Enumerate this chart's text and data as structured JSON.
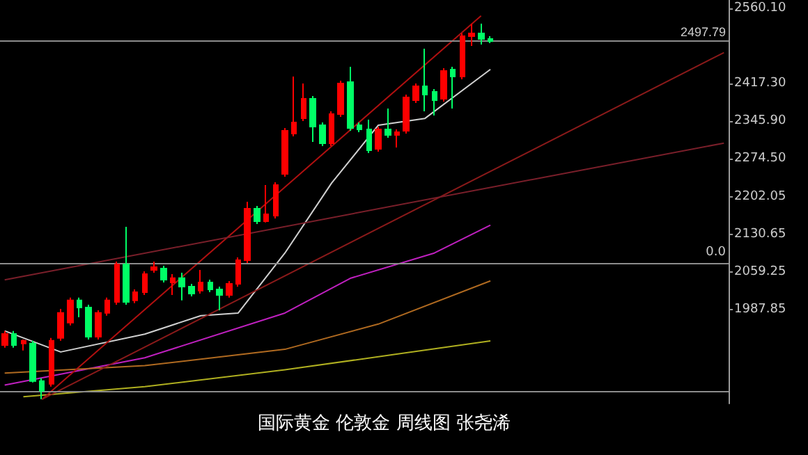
{
  "chart_data": {
    "type": "candlestick",
    "annotations": [
      "国际黄金 伦敦金 周线图 张尧浠",
      {
        "text": "0.0",
        "y": 2076
      }
    ],
    "categories": [
      null,
      null,
      null,
      null,
      null,
      null,
      null,
      null,
      null,
      null,
      null,
      null,
      null,
      null,
      null,
      null,
      null,
      null,
      null,
      null,
      null,
      null,
      null,
      null,
      null,
      null,
      null,
      null,
      null,
      null,
      null,
      null,
      null,
      null,
      null,
      null,
      null,
      null,
      null,
      null,
      null,
      null,
      null,
      null,
      null,
      null,
      null,
      null,
      null,
      null,
      null,
      null,
      null,
      null,
      null,
      null,
      null,
      null,
      null,
      null,
      null,
      null,
      null,
      null,
      null,
      null,
      null,
      null,
      null,
      null,
      null,
      null,
      null,
      null,
      null,
      null,
      null,
      null
    ],
    "ohlc": [
      [
        1920.2,
        1946.7,
        1915.0,
        1941.4
      ],
      [
        1941.4,
        1946.7,
        1915.0,
        1920.2
      ],
      [
        1922.9,
        1930.8,
        1909.7,
        1928.2
      ],
      [
        1922.9,
        1928.2,
        1848.9,
        1851.5
      ],
      [
        1851.5,
        1856.8,
        1817.2,
        1833.0
      ],
      [
        1846.2,
        1933.5,
        1841.0,
        1928.2
      ],
      [
        1933.5,
        1989.0,
        1928.2,
        1981.1
      ],
      [
        1962.6,
        2010.2,
        1957.3,
        2004.9
      ],
      [
        2004.9,
        2010.2,
        1973.1,
        1991.6
      ],
      [
        1991.6,
        1996.9,
        1930.8,
        1936.1
      ],
      [
        1936.1,
        1986.3,
        1930.8,
        1981.1
      ],
      [
        1981.1,
        2010.2,
        1975.8,
        2004.9
      ],
      [
        2002.2,
        2078.9,
        1996.9,
        2073.6
      ],
      [
        2073.6,
        2145.0,
        1996.9,
        2002.2
      ],
      [
        2004.9,
        2026.0,
        1999.6,
        2020.7
      ],
      [
        2020.7,
        2060.4,
        2015.4,
        2055.1
      ],
      [
        2063.0,
        2078.9,
        2057.7,
        2068.3
      ],
      [
        2065.7,
        2071.0,
        2039.2,
        2044.5
      ],
      [
        2039.2,
        2055.1,
        2015.4,
        2047.2
      ],
      [
        2047.2,
        2057.7,
        2004.9,
        2031.3
      ],
      [
        2031.3,
        2036.6,
        2012.8,
        2018.1
      ],
      [
        2023.4,
        2063.0,
        2018.1,
        2039.2
      ],
      [
        2039.2,
        2044.5,
        2020.7,
        2026.0
      ],
      [
        2026.0,
        2031.3,
        1986.3,
        2015.4
      ],
      [
        2015.4,
        2041.9,
        2010.2,
        2036.6
      ],
      [
        2036.6,
        2086.8,
        2031.3,
        2081.5
      ],
      [
        2081.5,
        2192.6,
        2076.2,
        2179.4
      ],
      [
        2179.4,
        2184.7,
        2150.3,
        2155.6
      ],
      [
        2155.6,
        2224.3,
        2153.0,
        2168.8
      ],
      [
        2166.2,
        2229.6,
        2160.9,
        2224.3
      ],
      [
        2245.5,
        2332.7,
        2240.2,
        2327.4
      ],
      [
        2322.1,
        2430.5,
        2316.8,
        2343.3
      ],
      [
        2351.2,
        2417.3,
        2345.9,
        2388.2
      ],
      [
        2388.2,
        2393.5,
        2306.3,
        2335.4
      ],
      [
        2338.0,
        2343.3,
        2298.3,
        2303.6
      ],
      [
        2303.6,
        2364.4,
        2298.3,
        2359.2
      ],
      [
        2359.2,
        2422.6,
        2353.9,
        2417.3
      ],
      [
        2420.0,
        2449.0,
        2327.4,
        2332.7
      ],
      [
        2338.0,
        2343.3,
        2324.8,
        2330.1
      ],
      [
        2330.1,
        2348.6,
        2285.1,
        2290.4
      ],
      [
        2293.0,
        2335.4,
        2287.8,
        2330.1
      ],
      [
        2330.1,
        2369.7,
        2314.2,
        2319.5
      ],
      [
        2319.5,
        2330.1,
        2295.6,
        2324.8
      ],
      [
        2327.4,
        2396.2,
        2322.1,
        2390.8
      ],
      [
        2385.6,
        2417.3,
        2380.3,
        2412.0
      ],
      [
        2412.0,
        2483.4,
        2364.4,
        2396.2
      ],
      [
        2401.5,
        2406.8,
        2356.5,
        2385.6
      ],
      [
        2388.2,
        2446.4,
        2383.0,
        2441.1
      ],
      [
        2443.8,
        2449.0,
        2369.7,
        2430.5
      ],
      [
        2430.5,
        2512.5,
        2425.3,
        2507.2
      ],
      [
        2507.2,
        2531.0,
        2488.7,
        2512.5
      ],
      [
        2512.5,
        2531.0,
        2491.4,
        2501.9
      ],
      [
        2501.9,
        2507.2,
        2493.9,
        2497.8
      ],
      null,
      null,
      null,
      null,
      null,
      null,
      null,
      null,
      null,
      null,
      null,
      null,
      null,
      null,
      null,
      null,
      null,
      null,
      null,
      null,
      null,
      null,
      null,
      null,
      null
    ],
    "colors": [
      "#ff0000",
      "#00ff66",
      "#ff0000",
      "#00ff66",
      "#00ff66",
      "#ff0000",
      "#ff0000",
      "#ff0000",
      "#00ff66",
      "#00ff66",
      "#ff0000",
      "#ff0000",
      "#ff0000",
      "#00ff66",
      "#ff0000",
      "#ff0000",
      "#ff0000",
      "#00ff66",
      "#ff0000",
      "#00ff66",
      "#00ff66",
      "#ff0000",
      "#00ff66",
      "#00ff66",
      "#ff0000",
      "#ff0000",
      "#ff0000",
      "#00ff66",
      "#ff0000",
      "#ff0000",
      "#ff0000",
      "#ff0000",
      "#ff0000",
      "#00ff66",
      "#00ff66",
      "#ff0000",
      "#ff0000",
      "#00ff66",
      "#00ff66",
      "#00ff66",
      "#ff0000",
      "#00ff66",
      "#ff0000",
      "#ff0000",
      "#ff0000",
      "#00ff66",
      "#00ff66",
      "#ff0000",
      "#00ff66",
      "#ff0000",
      "#ff0000",
      "#00ff66",
      "#00ff66",
      null,
      null,
      null,
      null,
      null,
      null,
      null,
      null,
      null,
      null,
      null,
      null,
      null,
      null,
      null,
      null,
      null,
      null,
      null,
      null,
      null,
      null,
      null,
      null,
      null
    ],
    "series": [
      {
        "type": "line",
        "color": "#c020c0",
        "values": [
          1844,
          null,
          null,
          null,
          null,
          null,
          null,
          null,
          null,
          null,
          null,
          null,
          null,
          null,
          null,
          1896,
          null,
          null,
          null,
          null,
          null,
          null,
          null,
          null,
          null,
          null,
          null,
          null,
          null,
          null,
          1981,
          null,
          null,
          null,
          null,
          null,
          null,
          2047,
          null,
          null,
          null,
          null,
          null,
          null,
          null,
          null,
          2095,
          null,
          null,
          null,
          null,
          null,
          2148,
          null,
          null,
          null,
          null,
          null,
          null,
          null,
          null,
          null,
          null,
          null,
          null,
          null,
          null,
          null,
          null,
          null,
          null,
          null,
          null,
          null,
          null,
          null,
          null,
          null
        ]
      },
      {
        "type": "line",
        "color": "#b0b020",
        "values": [
          null,
          null,
          1822,
          null,
          null,
          null,
          null,
          null,
          null,
          null,
          null,
          null,
          null,
          null,
          null,
          1841,
          null,
          null,
          null,
          null,
          null,
          null,
          null,
          null,
          null,
          null,
          null,
          null,
          null,
          null,
          1873,
          null,
          null,
          null,
          null,
          null,
          null,
          null,
          null,
          null,
          null,
          null,
          null,
          null,
          null,
          null,
          null,
          null,
          null,
          null,
          null,
          null,
          1928,
          null,
          null,
          null,
          null,
          null,
          null,
          null,
          null,
          null,
          null,
          null,
          null,
          null,
          null,
          null,
          null,
          null,
          null,
          null,
          null,
          null,
          null,
          null,
          null,
          null
        ]
      },
      {
        "type": "line",
        "color": "#b06a20",
        "values": [
          1867,
          null,
          null,
          null,
          null,
          null,
          null,
          null,
          null,
          null,
          null,
          null,
          null,
          null,
          null,
          1881,
          null,
          null,
          null,
          null,
          null,
          null,
          null,
          null,
          null,
          null,
          null,
          null,
          null,
          null,
          1912,
          null,
          null,
          null,
          null,
          null,
          null,
          null,
          null,
          null,
          1960,
          null,
          null,
          null,
          null,
          null,
          null,
          null,
          null,
          null,
          null,
          null,
          2042,
          null,
          null,
          null,
          null,
          null,
          null,
          null,
          null,
          null,
          null,
          null,
          null,
          null,
          null,
          null,
          null,
          null,
          null,
          null,
          null,
          null,
          null,
          null,
          null,
          null
        ]
      },
      {
        "type": "line",
        "color": "#d0d0d0",
        "values": [
          1947,
          null,
          null,
          null,
          null,
          null,
          1907,
          null,
          null,
          null,
          null,
          null,
          null,
          null,
          null,
          1941,
          null,
          null,
          null,
          null,
          null,
          1976,
          null,
          null,
          null,
          1981,
          null,
          null,
          null,
          null,
          2095,
          null,
          null,
          null,
          null,
          2228,
          null,
          null,
          null,
          null,
          2338,
          null,
          null,
          null,
          null,
          2351,
          null,
          null,
          null,
          null,
          null,
          null,
          2444,
          null,
          null,
          null,
          null,
          null,
          null,
          null,
          null,
          null,
          null,
          null,
          null,
          null,
          null,
          null,
          null,
          null,
          null,
          null,
          null,
          null,
          null,
          null,
          null,
          null
        ]
      },
      {
        "type": "line",
        "color": "#b01010",
        "values": [
          null,
          null,
          null,
          null,
          1817,
          null,
          null,
          null,
          null,
          null,
          null,
          null,
          null,
          null,
          null,
          null,
          null,
          null,
          null,
          null,
          null,
          null,
          null,
          null,
          null,
          null,
          null,
          null,
          null,
          null,
          null,
          null,
          null,
          null,
          null,
          null,
          null,
          null,
          null,
          null,
          null,
          null,
          null,
          null,
          null,
          null,
          null,
          null,
          null,
          null,
          null,
          2546,
          null,
          null,
          null,
          null,
          null,
          null,
          null,
          null,
          null,
          null,
          null,
          null,
          null,
          null,
          null,
          null,
          null,
          null,
          null,
          null,
          null,
          null,
          null,
          null,
          null,
          null
        ]
      },
      {
        "type": "line",
        "color": "#8b1a1a",
        "values": [
          null,
          null,
          null,
          null,
          1817,
          null,
          null,
          null,
          null,
          null,
          null,
          null,
          null,
          null,
          null,
          null,
          null,
          null,
          null,
          null,
          null,
          null,
          null,
          null,
          null,
          null,
          null,
          null,
          null,
          null,
          null,
          null,
          null,
          null,
          null,
          null,
          null,
          null,
          null,
          null,
          null,
          null,
          null,
          null,
          null,
          null,
          null,
          null,
          null,
          null,
          null,
          null,
          null,
          null,
          null,
          null,
          null,
          null,
          null,
          null,
          null,
          null,
          null,
          null,
          null,
          null,
          null,
          null,
          null,
          null,
          null,
          null,
          null,
          null,
          null,
          null,
          null,
          2476
        ]
      },
      {
        "type": "line",
        "color": "#7a1f2a",
        "values": [
          2044,
          null,
          null,
          null,
          null,
          null,
          null,
          null,
          null,
          null,
          null,
          null,
          null,
          null,
          null,
          null,
          null,
          null,
          null,
          null,
          null,
          null,
          null,
          null,
          null,
          null,
          null,
          null,
          null,
          null,
          null,
          null,
          null,
          null,
          null,
          null,
          null,
          null,
          null,
          null,
          null,
          null,
          null,
          null,
          null,
          null,
          null,
          null,
          null,
          null,
          null,
          null,
          null,
          null,
          null,
          null,
          null,
          null,
          null,
          null,
          null,
          null,
          null,
          null,
          null,
          null,
          null,
          null,
          null,
          null,
          null,
          null,
          null,
          null,
          null,
          null,
          null,
          2304
        ]
      }
    ],
    "ylim": [
      1809,
      2576
    ],
    "yticks": [
      {
        "value": 2560.1,
        "label": "2560.10"
      },
      {
        "value": 2417.3,
        "label": "2417.30"
      },
      {
        "value": 2345.9,
        "label": "2345.90"
      },
      {
        "value": 2274.5,
        "label": "2274.50"
      },
      {
        "value": 2202.05,
        "label": "2202.05"
      },
      {
        "value": 2130.65,
        "label": "2130.65"
      },
      {
        "value": 2059.25,
        "label": "2059.25"
      },
      {
        "value": 1987.85,
        "label": "1987.85"
      }
    ],
    "ref_lines": [
      {
        "axis": "y",
        "value": 2497.79,
        "label": "2497.79",
        "color": "#8c8c8c"
      },
      {
        "axis": "y",
        "value": 2076,
        "color": "#8c8c8c"
      },
      {
        "axis": "y",
        "value": 1833.0,
        "color": "#8c8c8c"
      }
    ],
    "tick_labels": "y"
  }
}
